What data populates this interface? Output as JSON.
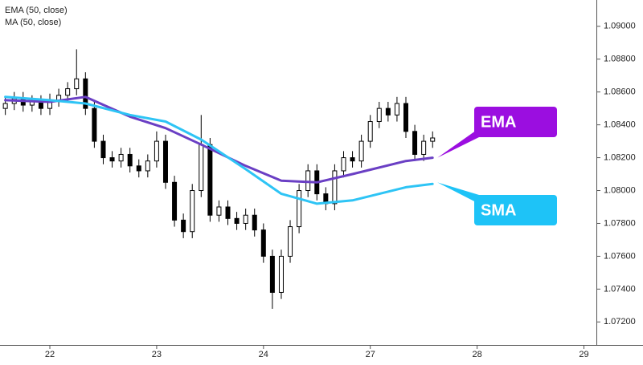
{
  "chart_data": {
    "type": "candlestick",
    "x": [
      7,
      8,
      9,
      10,
      11,
      12,
      13,
      14,
      15,
      16,
      17,
      18,
      19,
      20,
      21,
      22,
      23,
      24,
      25,
      26,
      27,
      28,
      29,
      30,
      31,
      32,
      33,
      34,
      35,
      36,
      37,
      38,
      39,
      40,
      41,
      42,
      43,
      44,
      45,
      46,
      47,
      48,
      49,
      50,
      51,
      52,
      53,
      54,
      55
    ],
    "open": [
      1.085,
      1.0853,
      1.0856,
      1.0852,
      1.0854,
      1.085,
      1.0855,
      1.0858,
      1.0862,
      1.0868,
      1.085,
      1.083,
      1.082,
      1.0818,
      1.0822,
      1.0815,
      1.0812,
      1.0818,
      1.083,
      1.0805,
      1.0782,
      1.0775,
      1.08,
      1.0828,
      1.0785,
      1.079,
      1.0783,
      1.078,
      1.0785,
      1.0776,
      1.076,
      1.0738,
      1.076,
      1.0778,
      1.08,
      1.0812,
      1.0798,
      1.0792,
      1.0812,
      1.082,
      1.0818,
      1.083,
      1.0842,
      1.085,
      1.0846,
      1.0853,
      1.0836,
      1.0822,
      1.083
    ],
    "high": [
      1.0857,
      1.086,
      1.086,
      1.0858,
      1.0858,
      1.0859,
      1.0862,
      1.0866,
      1.0886,
      1.0872,
      1.0854,
      1.0834,
      1.0824,
      1.0826,
      1.0826,
      1.0819,
      1.0822,
      1.0836,
      1.0834,
      1.0809,
      1.0786,
      1.0804,
      1.0846,
      1.0832,
      1.0794,
      1.0794,
      1.0787,
      1.0789,
      1.0789,
      1.078,
      1.0764,
      1.0764,
      1.0782,
      1.0804,
      1.0816,
      1.0816,
      1.0802,
      1.0816,
      1.0824,
      1.0824,
      1.0834,
      1.0846,
      1.0854,
      1.0854,
      1.0857,
      1.0857,
      1.084,
      1.0834,
      1.0836
    ],
    "low": [
      1.0846,
      1.0849,
      1.0848,
      1.0848,
      1.0846,
      1.0846,
      1.0851,
      1.0854,
      1.0858,
      1.0846,
      1.0826,
      1.0816,
      1.0814,
      1.0814,
      1.0811,
      1.0808,
      1.0808,
      1.0814,
      1.0801,
      1.0778,
      1.0771,
      1.0771,
      1.0796,
      1.0781,
      1.0781,
      1.0779,
      1.0776,
      1.0776,
      1.0772,
      1.0756,
      1.0728,
      1.0734,
      1.0756,
      1.0774,
      1.0796,
      1.0794,
      1.0788,
      1.0788,
      1.0808,
      1.0814,
      1.0814,
      1.0826,
      1.0838,
      1.0842,
      1.0842,
      1.0832,
      1.0818,
      1.0818,
      1.0826
    ],
    "close": [
      1.0853,
      1.0856,
      1.0852,
      1.0854,
      1.085,
      1.0855,
      1.0858,
      1.0862,
      1.0868,
      1.085,
      1.083,
      1.082,
      1.0818,
      1.0822,
      1.0815,
      1.0812,
      1.0818,
      1.083,
      1.0805,
      1.0782,
      1.0775,
      1.08,
      1.0828,
      1.0785,
      1.079,
      1.0783,
      1.078,
      1.0785,
      1.0776,
      1.076,
      1.0738,
      1.076,
      1.0778,
      1.08,
      1.0812,
      1.0798,
      1.0792,
      1.0812,
      1.082,
      1.0818,
      1.083,
      1.0842,
      1.085,
      1.0846,
      1.0853,
      1.0836,
      1.0822,
      1.083,
      1.0832
    ],
    "up_color": "#ffffff",
    "down_color": "#000000",
    "series": [
      {
        "name": "EMA (50, close)",
        "color": "#6a3fc4",
        "x": [
          7,
          12,
          16,
          21,
          25,
          29,
          34,
          38,
          42,
          46,
          52,
          55
        ],
        "values": [
          1.0855,
          1.0854,
          1.0857,
          1.0845,
          1.0838,
          1.0828,
          1.0815,
          1.0806,
          1.0805,
          1.081,
          1.0818,
          1.082
        ]
      },
      {
        "name": "MA (50, close)",
        "color": "#2ec4f5",
        "x": [
          7,
          12,
          16,
          21,
          25,
          29,
          34,
          38,
          42,
          46,
          52,
          55
        ],
        "values": [
          1.0857,
          1.0855,
          1.0853,
          1.0846,
          1.0842,
          1.0831,
          1.0813,
          1.0798,
          1.0792,
          1.0794,
          1.0802,
          1.0804
        ]
      }
    ],
    "annotations": [
      {
        "text": "EMA",
        "color": "#9b0ee0"
      },
      {
        "text": "SMA",
        "color": "#1ec3f7"
      }
    ],
    "xlim": [
      6.4,
      73.4
    ],
    "xticks": [
      {
        "value": 12,
        "label": "22"
      },
      {
        "value": 24,
        "label": "23"
      },
      {
        "value": 36,
        "label": "24"
      },
      {
        "value": 48,
        "label": "27"
      },
      {
        "value": 60,
        "label": "28"
      },
      {
        "value": 72,
        "label": "29"
      }
    ],
    "ylim": [
      1.0706,
      1.0916
    ],
    "yticks": [
      {
        "value": 1.072,
        "label": "1.07200"
      },
      {
        "value": 1.074,
        "label": "1.07400"
      },
      {
        "value": 1.076,
        "label": "1.07600"
      },
      {
        "value": 1.078,
        "label": "1.07800"
      },
      {
        "value": 1.08,
        "label": "1.08000"
      },
      {
        "value": 1.082,
        "label": "1.08200"
      },
      {
        "value": 1.084,
        "label": "1.08400"
      },
      {
        "value": 1.086,
        "label": "1.08600"
      },
      {
        "value": 1.088,
        "label": "1.08800"
      },
      {
        "value": 1.09,
        "label": "1.09000"
      }
    ]
  }
}
